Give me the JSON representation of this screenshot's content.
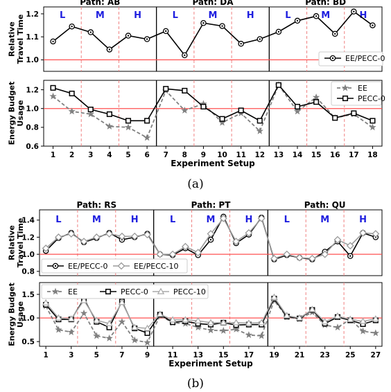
{
  "captions": [
    "(a)",
    "(b)"
  ],
  "chart_data": [
    {
      "type": "line",
      "figure": "a",
      "panel": "travel_time",
      "ylabel": [
        "Relative",
        "Travel Time"
      ],
      "ylim": [
        0.95,
        1.23
      ],
      "yticks": [
        1.0,
        1.1,
        1.2
      ],
      "x": [
        1,
        2,
        3,
        4,
        5,
        6,
        7,
        8,
        9,
        10,
        11,
        12,
        13,
        14,
        15,
        16,
        17,
        18
      ],
      "reference_line": 1.0,
      "path_titles": [
        "Path: AB",
        "Path: DA",
        "Path: BD"
      ],
      "zones": [
        "L",
        "M",
        "H"
      ],
      "legend": "bottom-right",
      "series": [
        {
          "name": "EE/PECC-0",
          "values": [
            1.08,
            1.145,
            1.12,
            1.045,
            1.105,
            1.09,
            1.125,
            1.02,
            1.16,
            1.147,
            1.07,
            1.09,
            1.122,
            1.17,
            1.19,
            1.113,
            1.21,
            1.15
          ]
        }
      ]
    },
    {
      "type": "line",
      "figure": "a",
      "panel": "energy_budget",
      "ylabel": [
        "Energy Budget",
        "Usage"
      ],
      "xlabel": "Experiment Setup",
      "ylim": [
        0.6,
        1.3
      ],
      "yticks": [
        0.6,
        0.8,
        1.0,
        1.2
      ],
      "x": [
        1,
        2,
        3,
        4,
        5,
        6,
        7,
        8,
        9,
        10,
        11,
        12,
        13,
        14,
        15,
        16,
        17,
        18
      ],
      "xticks": [
        1,
        2,
        3,
        4,
        5,
        6,
        7,
        8,
        9,
        10,
        11,
        12,
        13,
        14,
        15,
        16,
        17,
        18
      ],
      "reference_line": 1.0,
      "legend": "top-right",
      "series": [
        {
          "name": "EE",
          "values": [
            1.13,
            0.97,
            0.94,
            0.81,
            0.8,
            0.69,
            1.19,
            0.98,
            1.05,
            0.85,
            0.95,
            0.76,
            1.25,
            0.97,
            1.12,
            0.9,
            0.94,
            0.8
          ]
        },
        {
          "name": "PECC-0",
          "values": [
            1.22,
            1.16,
            0.99,
            0.94,
            0.87,
            0.87,
            1.21,
            1.19,
            1.02,
            0.89,
            0.98,
            0.87,
            1.25,
            1.02,
            1.07,
            0.9,
            0.95,
            0.87
          ]
        }
      ]
    },
    {
      "type": "line",
      "figure": "b",
      "panel": "travel_time",
      "ylabel": [
        "Relative",
        "Travel Time"
      ],
      "ylim": [
        0.75,
        1.52
      ],
      "yticks": [
        0.8,
        1.0,
        1.2,
        1.4
      ],
      "x": [
        1,
        2,
        3,
        4,
        5,
        6,
        7,
        8,
        9,
        10,
        11,
        12,
        13,
        14,
        15,
        16,
        17,
        18,
        19,
        20,
        21,
        22,
        23,
        24,
        25,
        26,
        27
      ],
      "reference_line": 1.0,
      "path_titles": [
        "Path: RS",
        "Path: PT",
        "Path: QU"
      ],
      "zones": [
        "L",
        "M",
        "H"
      ],
      "legend": "bottom-left",
      "series": [
        {
          "name": "EE/PECC-0",
          "values": [
            1.04,
            1.19,
            1.25,
            1.14,
            1.19,
            1.25,
            1.17,
            1.2,
            1.24,
            1.0,
            0.99,
            1.07,
            0.99,
            1.17,
            1.44,
            1.13,
            1.23,
            1.43,
            0.94,
            0.99,
            0.96,
            0.94,
            1.03,
            1.15,
            0.98,
            1.25,
            1.2
          ]
        },
        {
          "name": "EE/PECC-10",
          "values": [
            1.07,
            1.2,
            1.24,
            1.15,
            1.2,
            1.24,
            1.21,
            1.21,
            1.23,
            1.0,
            1.0,
            1.09,
            1.02,
            1.24,
            1.42,
            1.15,
            1.25,
            1.42,
            0.95,
            1.0,
            0.96,
            0.95,
            1.0,
            1.17,
            1.1,
            1.25,
            1.24
          ]
        }
      ]
    },
    {
      "type": "line",
      "figure": "b",
      "panel": "energy_budget",
      "ylabel": [
        "Energy Budget",
        "Usage"
      ],
      "xlabel": "Experiment Setup",
      "ylim": [
        0.4,
        1.75
      ],
      "yticks": [
        0.5,
        1.0,
        1.5
      ],
      "x": [
        1,
        2,
        3,
        4,
        5,
        6,
        7,
        8,
        9,
        10,
        11,
        12,
        13,
        14,
        15,
        16,
        17,
        18,
        19,
        20,
        21,
        22,
        23,
        24,
        25,
        26,
        27
      ],
      "xticks": [
        1,
        3,
        5,
        7,
        9,
        11,
        13,
        15,
        17,
        19,
        21,
        23,
        25,
        27
      ],
      "reference_line": 1.0,
      "legend": "top-left",
      "series": [
        {
          "name": "EE",
          "values": [
            1.25,
            0.75,
            0.7,
            1.1,
            0.62,
            0.57,
            0.92,
            0.53,
            0.48,
            1.05,
            0.9,
            0.88,
            0.8,
            0.74,
            0.73,
            0.76,
            0.64,
            0.62,
            1.37,
            1.02,
            0.98,
            1.12,
            0.85,
            0.8,
            0.97,
            0.72,
            0.68
          ]
        },
        {
          "name": "PECC-0",
          "values": [
            1.28,
            0.97,
            0.97,
            1.4,
            0.92,
            0.8,
            1.35,
            0.78,
            0.68,
            1.07,
            0.91,
            0.93,
            0.88,
            0.86,
            0.9,
            0.85,
            0.86,
            0.86,
            1.41,
            1.03,
            0.99,
            1.17,
            0.88,
            1.02,
            0.95,
            0.87,
            0.95
          ]
        },
        {
          "name": "PECC-10",
          "values": [
            1.32,
            1.0,
            0.98,
            1.37,
            0.95,
            0.88,
            1.33,
            0.8,
            0.78,
            1.08,
            0.96,
            0.96,
            0.94,
            0.9,
            0.9,
            0.9,
            0.89,
            0.9,
            1.44,
            1.05,
            1.0,
            1.18,
            0.92,
            1.04,
            0.97,
            0.93,
            0.98
          ]
        }
      ]
    }
  ]
}
